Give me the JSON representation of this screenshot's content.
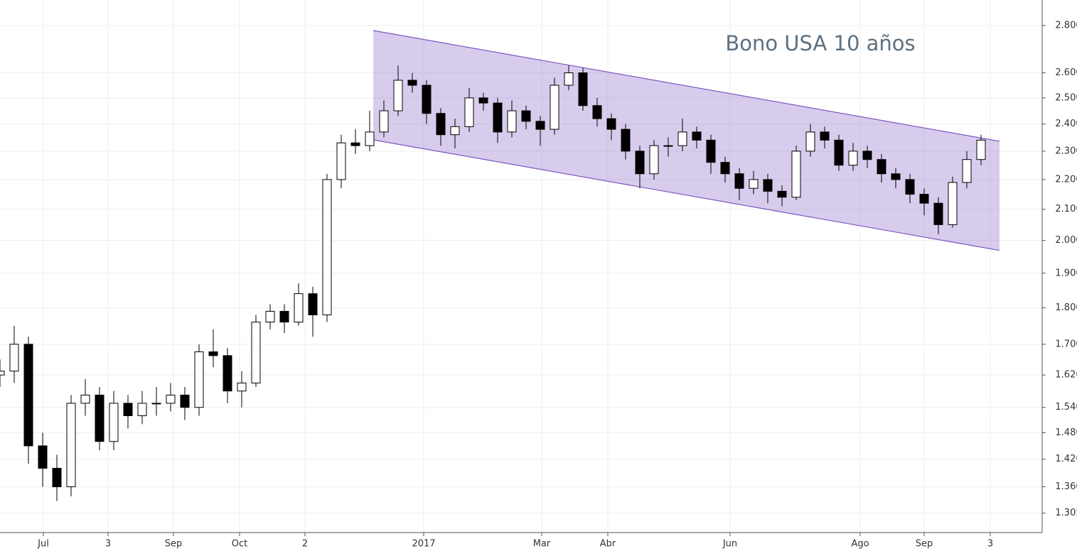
{
  "chart_data": {
    "type": "candlestick",
    "title": "Bono USA 10 años",
    "log_scale": true,
    "grid": true,
    "up_color": "#ffffff",
    "down_color": "#000000",
    "x": [
      0,
      5,
      10,
      15,
      20,
      25,
      30,
      35,
      40,
      45,
      50,
      55,
      60,
      65,
      70,
      75,
      80,
      85,
      90,
      95,
      100,
      105,
      110,
      115,
      120,
      125,
      130,
      135,
      140,
      145,
      150,
      155,
      160,
      165,
      170,
      175,
      180,
      185,
      190,
      195,
      200,
      205,
      210,
      215,
      220,
      225,
      230,
      235,
      240,
      245,
      250,
      255,
      260,
      265,
      270,
      275,
      280,
      285,
      290,
      295,
      300,
      305,
      310,
      315,
      320,
      325,
      330,
      335,
      340,
      345
    ],
    "open": [
      1.62,
      1.63,
      1.7,
      1.45,
      1.4,
      1.36,
      1.55,
      1.57,
      1.46,
      1.55,
      1.52,
      1.55,
      1.55,
      1.57,
      1.54,
      1.68,
      1.67,
      1.58,
      1.6,
      1.76,
      1.79,
      1.76,
      1.84,
      1.78,
      2.2,
      2.33,
      2.32,
      2.37,
      2.45,
      2.57,
      2.55,
      2.44,
      2.36,
      2.39,
      2.5,
      2.48,
      2.37,
      2.45,
      2.41,
      2.38,
      2.55,
      2.6,
      2.47,
      2.42,
      2.38,
      2.3,
      2.22,
      2.32,
      2.32,
      2.37,
      2.34,
      2.26,
      2.22,
      2.17,
      2.2,
      2.16,
      2.14,
      2.3,
      2.37,
      2.34,
      2.25,
      2.3,
      2.27,
      2.22,
      2.2,
      2.15,
      2.12,
      2.05,
      2.19,
      2.27
    ],
    "high": [
      1.66,
      1.75,
      1.72,
      1.48,
      1.43,
      1.57,
      1.61,
      1.59,
      1.58,
      1.57,
      1.58,
      1.59,
      1.6,
      1.59,
      1.7,
      1.74,
      1.69,
      1.63,
      1.78,
      1.81,
      1.81,
      1.87,
      1.86,
      2.22,
      2.36,
      2.38,
      2.45,
      2.49,
      2.63,
      2.6,
      2.57,
      2.46,
      2.42,
      2.54,
      2.52,
      2.5,
      2.49,
      2.47,
      2.43,
      2.58,
      2.63,
      2.62,
      2.5,
      2.44,
      2.4,
      2.32,
      2.34,
      2.35,
      2.42,
      2.39,
      2.36,
      2.28,
      2.24,
      2.23,
      2.22,
      2.18,
      2.32,
      2.4,
      2.39,
      2.36,
      2.33,
      2.32,
      2.29,
      2.24,
      2.22,
      2.17,
      2.14,
      2.21,
      2.3,
      2.36
    ],
    "low": [
      1.59,
      1.6,
      1.41,
      1.36,
      1.33,
      1.34,
      1.52,
      1.44,
      1.44,
      1.49,
      1.5,
      1.52,
      1.53,
      1.51,
      1.52,
      1.64,
      1.55,
      1.54,
      1.59,
      1.74,
      1.73,
      1.75,
      1.72,
      1.76,
      2.17,
      2.29,
      2.3,
      2.35,
      2.43,
      2.52,
      2.4,
      2.32,
      2.31,
      2.37,
      2.45,
      2.33,
      2.35,
      2.38,
      2.32,
      2.36,
      2.53,
      2.45,
      2.39,
      2.34,
      2.27,
      2.17,
      2.2,
      2.28,
      2.3,
      2.31,
      2.22,
      2.19,
      2.13,
      2.15,
      2.12,
      2.11,
      2.13,
      2.28,
      2.31,
      2.23,
      2.23,
      2.24,
      2.19,
      2.17,
      2.12,
      2.08,
      2.02,
      2.04,
      2.17,
      2.25
    ],
    "close": [
      1.63,
      1.7,
      1.45,
      1.4,
      1.36,
      1.55,
      1.57,
      1.46,
      1.55,
      1.52,
      1.55,
      1.55,
      1.57,
      1.54,
      1.68,
      1.67,
      1.58,
      1.6,
      1.76,
      1.79,
      1.76,
      1.84,
      1.78,
      2.2,
      2.33,
      2.32,
      2.37,
      2.45,
      2.57,
      2.55,
      2.44,
      2.36,
      2.39,
      2.5,
      2.48,
      2.37,
      2.45,
      2.41,
      2.38,
      2.55,
      2.6,
      2.47,
      2.42,
      2.38,
      2.3,
      2.22,
      2.32,
      2.32,
      2.37,
      2.34,
      2.26,
      2.22,
      2.17,
      2.2,
      2.16,
      2.14,
      2.3,
      2.37,
      2.34,
      2.25,
      2.3,
      2.27,
      2.22,
      2.2,
      2.15,
      2.12,
      2.05,
      2.19,
      2.27,
      2.34
    ],
    "channel": {
      "color": "#7e57c2",
      "upper": {
        "x": [
          131.25,
          351.5
        ],
        "y": [
          2.778,
          2.336
        ]
      },
      "lower": {
        "x": [
          131.25,
          351.5
        ],
        "y": [
          2.341,
          1.969
        ]
      }
    },
    "xlim": [
      0,
      366.25
    ],
    "ylim": [
      1.266,
      2.914
    ],
    "xticks": [
      {
        "value": 15.25,
        "label": "Jul"
      },
      {
        "value": 38,
        "label": "3"
      },
      {
        "value": 61,
        "label": "Sep"
      },
      {
        "value": 84.25,
        "label": "Oct"
      },
      {
        "value": 107.25,
        "label": "2"
      },
      {
        "value": 149,
        "label": "2017"
      },
      {
        "value": 190.5,
        "label": "Mar"
      },
      {
        "value": 213.75,
        "label": "Abr"
      },
      {
        "value": 256.75,
        "label": "Jun"
      },
      {
        "value": 302.5,
        "label": "Ago"
      },
      {
        "value": 325,
        "label": "Sep"
      },
      {
        "value": 348.25,
        "label": "3"
      }
    ],
    "yticks": [
      {
        "value": 1.305,
        "label": "1.305"
      },
      {
        "value": 1.36,
        "label": "1.360"
      },
      {
        "value": 1.42,
        "label": "1.420"
      },
      {
        "value": 1.48,
        "label": "1.480"
      },
      {
        "value": 1.54,
        "label": "1.540"
      },
      {
        "value": 1.62,
        "label": "1.620"
      },
      {
        "value": 1.7,
        "label": "1.700"
      },
      {
        "value": 1.8,
        "label": "1.800"
      },
      {
        "value": 1.9,
        "label": "1.900"
      },
      {
        "value": 2.0,
        "label": "2.000"
      },
      {
        "value": 2.1,
        "label": "2.100"
      },
      {
        "value": 2.2,
        "label": "2.200"
      },
      {
        "value": 2.3,
        "label": "2.300"
      },
      {
        "value": 2.4,
        "label": "2.400"
      },
      {
        "value": 2.5,
        "label": "2.500"
      },
      {
        "value": 2.6,
        "label": "2.600"
      },
      {
        "value": 2.8,
        "label": "2.800"
      }
    ]
  }
}
